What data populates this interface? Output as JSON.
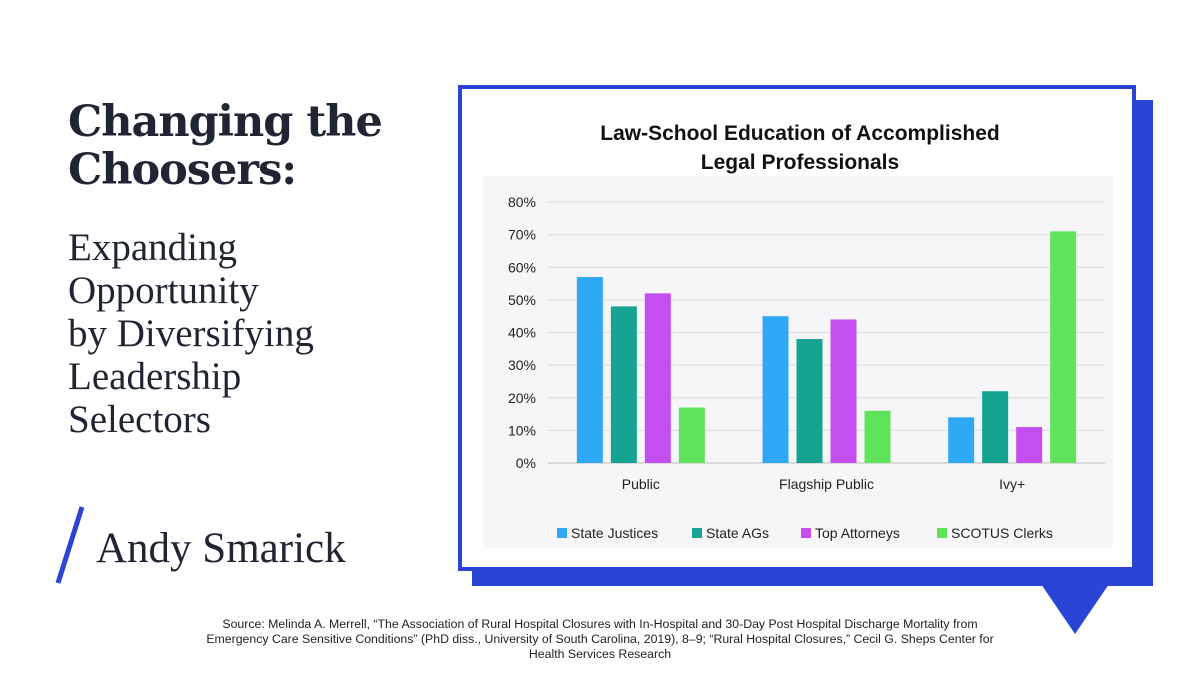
{
  "heading": {
    "title_lines": [
      "Changing the",
      "Choosers:"
    ],
    "subtitle_lines": [
      "Expanding",
      "Opportunity",
      "by Diversifying",
      "Leadership",
      "Selectors"
    ]
  },
  "author": "Andy Smarick",
  "source_lines": [
    "Source: Melinda A. Merrell, “The Association of Rural Hospital Closures with In-Hospital and 30-Day Post Hospital Discharge Mortality from",
    "Emergency Care Sensitive Conditions” (PhD diss., University of South Carolina, 2019), 8–9; “Rural Hospital Closures,” Cecil G. Sheps Center for",
    "Health Services Research"
  ],
  "colors": {
    "accent": "#2a45d6",
    "text": "#1f2533"
  },
  "chart_data": {
    "type": "bar",
    "title_lines": [
      "Law-School Education of Accomplished",
      "Legal Professionals"
    ],
    "categories": [
      "Public",
      "Flagship Public",
      "Ivy+"
    ],
    "series": [
      {
        "name": "State Justices",
        "color": "#2fa8f5",
        "values": [
          57,
          45,
          14
        ]
      },
      {
        "name": "State AGs",
        "color": "#16a391",
        "values": [
          48,
          38,
          22
        ]
      },
      {
        "name": "Top Attorneys",
        "color": "#c54ef0",
        "values": [
          52,
          44,
          11
        ]
      },
      {
        "name": "SCOTUS Clerks",
        "color": "#5ee35a",
        "values": [
          17,
          16,
          71
        ]
      }
    ],
    "ylim": [
      0,
      80
    ],
    "yticks": [
      "0%",
      "10%",
      "20%",
      "30%",
      "40%",
      "50%",
      "60%",
      "70%",
      "80%"
    ],
    "grid": true,
    "legend": "bottom"
  }
}
